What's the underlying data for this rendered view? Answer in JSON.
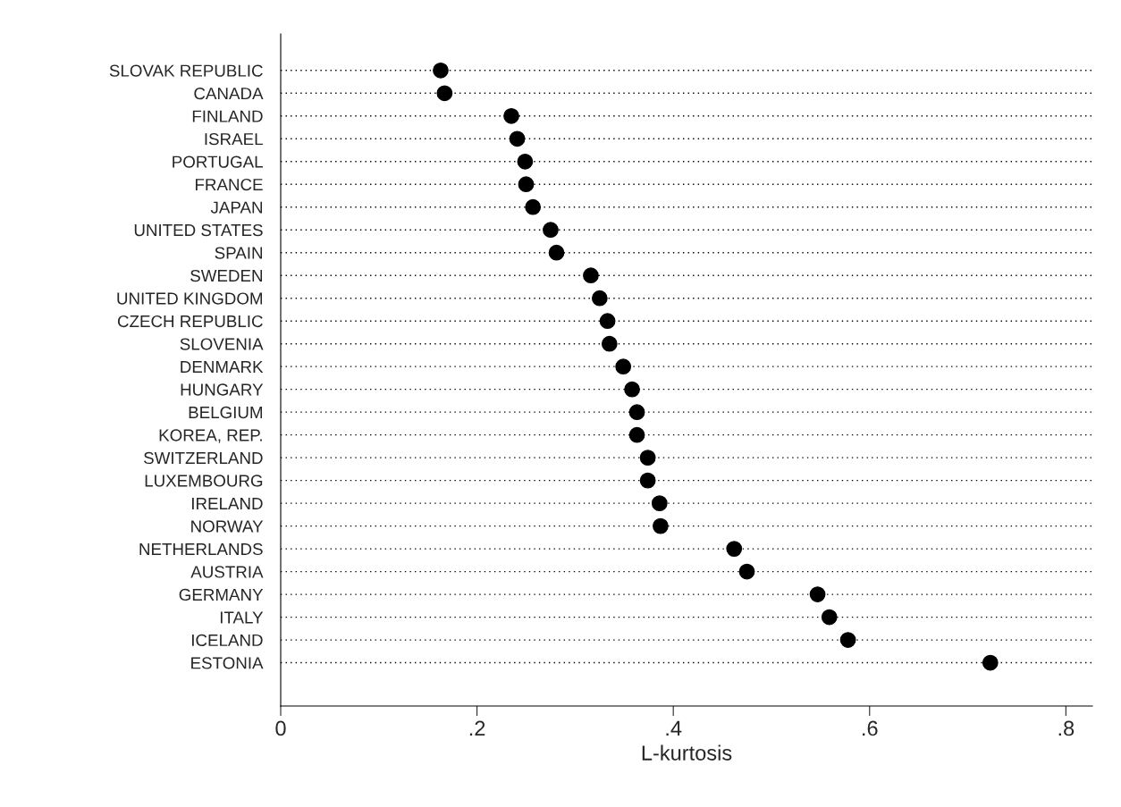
{
  "chart_data": {
    "type": "scatter",
    "orientation": "horizontal",
    "categories": [
      "SLOVAK REPUBLIC",
      "CANADA",
      "FINLAND",
      "ISRAEL",
      "PORTUGAL",
      "FRANCE",
      "JAPAN",
      "UNITED STATES",
      "SPAIN",
      "SWEDEN",
      "UNITED KINGDOM",
      "CZECH REPUBLIC",
      "SLOVENIA",
      "DENMARK",
      "HUNGARY",
      "BELGIUM",
      "KOREA, REP.",
      "SWITZERLAND",
      "LUXEMBOURG",
      "IRELAND",
      "NORWAY",
      "NETHERLANDS",
      "AUSTRIA",
      "GERMANY",
      "ITALY",
      "ICELAND",
      "ESTONIA"
    ],
    "values": [
      0.163,
      0.167,
      0.235,
      0.241,
      0.249,
      0.25,
      0.257,
      0.275,
      0.281,
      0.316,
      0.325,
      0.333,
      0.335,
      0.349,
      0.358,
      0.363,
      0.363,
      0.374,
      0.374,
      0.386,
      0.387,
      0.462,
      0.475,
      0.547,
      0.559,
      0.578,
      0.723
    ],
    "color": "#000000",
    "marker": "circle",
    "xlabel": "L-kurtosis",
    "xlim": [
      0,
      0.827
    ],
    "xticks": [
      0,
      {
        "value": 0.2,
        "label": ".2"
      },
      {
        "value": 0.4,
        "label": ".4"
      },
      {
        "value": 0.6,
        "label": ".6"
      },
      {
        "value": 0.8,
        "label": ".8"
      }
    ],
    "grid": "y",
    "line_style": "dotted",
    "legend": false
  }
}
